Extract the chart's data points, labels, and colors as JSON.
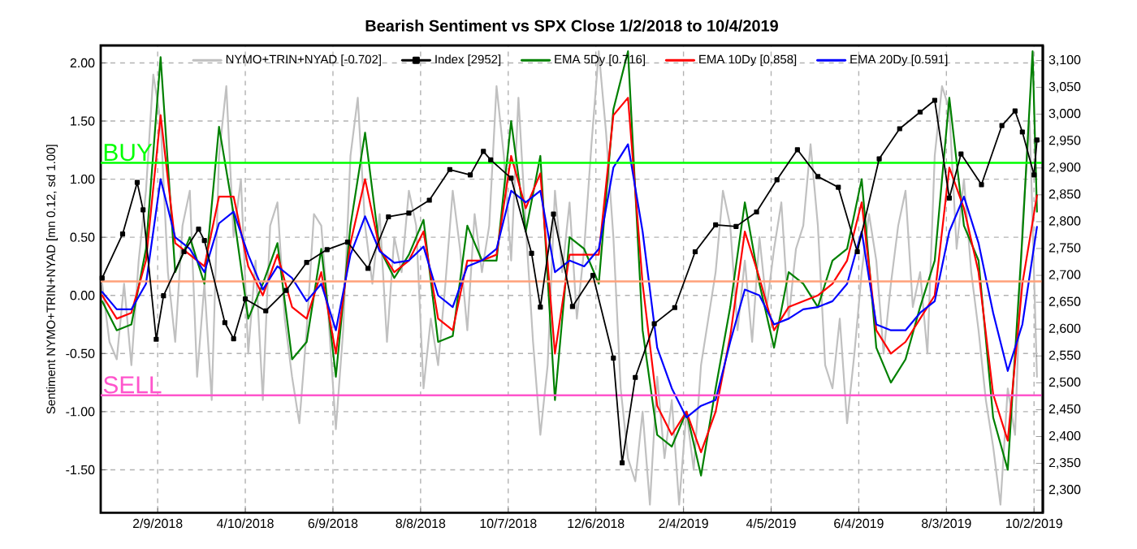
{
  "chart_data": {
    "type": "line",
    "title": "Bearish Sentiment vs SPX Close 1/2/2018 to 10/4/2019",
    "ylabel": "Sentiment NYMO+TRIN+NYAD [mn 0.12, sd 1.00]",
    "xlim": [
      "2018-01-01",
      "2019-10-08"
    ],
    "xticks": [
      {
        "value": "2018-02-09",
        "label": "2/9/2018"
      },
      {
        "value": "2018-04-10",
        "label": "4/10/2018"
      },
      {
        "value": "2018-06-09",
        "label": "6/9/2018"
      },
      {
        "value": "2018-08-08",
        "label": "8/8/2018"
      },
      {
        "value": "2018-10-07",
        "label": "10/7/2018"
      },
      {
        "value": "2018-12-06",
        "label": "12/6/2018"
      },
      {
        "value": "2019-02-04",
        "label": "2/4/2019"
      },
      {
        "value": "2019-04-05",
        "label": "4/5/2019"
      },
      {
        "value": "2019-06-04",
        "label": "6/4/2019"
      },
      {
        "value": "2019-08-03",
        "label": "8/3/2019"
      },
      {
        "value": "2019-10-02",
        "label": "10/2/2019"
      }
    ],
    "ylim": [
      -1.87,
      2.15
    ],
    "yticks": [
      {
        "value": -1.5,
        "label": "-1.50"
      },
      {
        "value": -1,
        "label": "-1.00"
      },
      {
        "value": -0.5,
        "label": "-0.50"
      },
      {
        "value": 0,
        "label": "0.00"
      },
      {
        "value": 0.5,
        "label": "0.50"
      },
      {
        "value": 1,
        "label": "1.00"
      },
      {
        "value": 1.5,
        "label": "1.50"
      },
      {
        "value": 2,
        "label": "2.00"
      }
    ],
    "y2lim": [
      2258,
      3128
    ],
    "y2ticks": [
      {
        "value": 2300,
        "label": "2,300"
      },
      {
        "value": 2350,
        "label": "2,350"
      },
      {
        "value": 2400,
        "label": "2,400"
      },
      {
        "value": 2450,
        "label": "2,450"
      },
      {
        "value": 2500,
        "label": "2,500"
      },
      {
        "value": 2550,
        "label": "2,550"
      },
      {
        "value": 2600,
        "label": "2,600"
      },
      {
        "value": 2650,
        "label": "2,650"
      },
      {
        "value": 2700,
        "label": "2,700"
      },
      {
        "value": 2750,
        "label": "2,750"
      },
      {
        "value": 2800,
        "label": "2,800"
      },
      {
        "value": 2850,
        "label": "2,850"
      },
      {
        "value": 2900,
        "label": "2,900"
      },
      {
        "value": 2950,
        "label": "2,950"
      },
      {
        "value": 3000,
        "label": "3,000"
      },
      {
        "value": 3050,
        "label": "3,050"
      },
      {
        "value": 3100,
        "label": "3,100"
      }
    ],
    "grid": true,
    "legend": "top",
    "ref_lines": [
      {
        "axis": "y",
        "value": 1.14,
        "label": "BUY",
        "color": "#00ff00"
      },
      {
        "axis": "y",
        "value": 0.12,
        "color": "#ffa07a"
      },
      {
        "axis": "y",
        "value": -0.86,
        "label": "SELL",
        "color": "#ff55cc"
      }
    ],
    "series": [
      {
        "name": "NYMO+TRIN+NYAD [-0.702]",
        "color": "#c0c0c0",
        "x": [
          "2018-01-02",
          "2018-01-07",
          "2018-01-12",
          "2018-01-17",
          "2018-01-22",
          "2018-01-27",
          "2018-02-01",
          "2018-02-06",
          "2018-02-11",
          "2018-02-16",
          "2018-02-21",
          "2018-02-26",
          "2018-03-03",
          "2018-03-08",
          "2018-03-13",
          "2018-03-18",
          "2018-03-23",
          "2018-03-28",
          "2018-04-02",
          "2018-04-07",
          "2018-04-12",
          "2018-04-17",
          "2018-04-22",
          "2018-04-27",
          "2018-05-02",
          "2018-05-07",
          "2018-05-12",
          "2018-05-17",
          "2018-05-22",
          "2018-05-27",
          "2018-06-01",
          "2018-06-06",
          "2018-06-11",
          "2018-06-16",
          "2018-06-21",
          "2018-06-26",
          "2018-07-01",
          "2018-07-06",
          "2018-07-11",
          "2018-07-16",
          "2018-07-21",
          "2018-07-26",
          "2018-07-31",
          "2018-08-05",
          "2018-08-10",
          "2018-08-15",
          "2018-08-20",
          "2018-08-25",
          "2018-08-30",
          "2018-09-04",
          "2018-09-09",
          "2018-09-14",
          "2018-09-19",
          "2018-09-24",
          "2018-09-29",
          "2018-10-04",
          "2018-10-09",
          "2018-10-14",
          "2018-10-19",
          "2018-10-24",
          "2018-10-29",
          "2018-11-03",
          "2018-11-08",
          "2018-11-13",
          "2018-11-18",
          "2018-11-23",
          "2018-11-28",
          "2018-12-03",
          "2018-12-08",
          "2018-12-13",
          "2018-12-18",
          "2018-12-23",
          "2018-12-28",
          "2019-01-02",
          "2019-01-07",
          "2019-01-12",
          "2019-01-17",
          "2019-01-22",
          "2019-01-27",
          "2019-02-01",
          "2019-02-06",
          "2019-02-11",
          "2019-02-16",
          "2019-02-21",
          "2019-02-26",
          "2019-03-03",
          "2019-03-08",
          "2019-03-13",
          "2019-03-18",
          "2019-03-23",
          "2019-03-28",
          "2019-04-02",
          "2019-04-07",
          "2019-04-12",
          "2019-04-17",
          "2019-04-22",
          "2019-04-27",
          "2019-05-02",
          "2019-05-07",
          "2019-05-12",
          "2019-05-17",
          "2019-05-22",
          "2019-05-27",
          "2019-06-01",
          "2019-06-06",
          "2019-06-11",
          "2019-06-16",
          "2019-06-21",
          "2019-06-26",
          "2019-07-01",
          "2019-07-06",
          "2019-07-11",
          "2019-07-16",
          "2019-07-21",
          "2019-07-26",
          "2019-07-31",
          "2019-08-05",
          "2019-08-10",
          "2019-08-15",
          "2019-08-20",
          "2019-08-25",
          "2019-08-30",
          "2019-09-04",
          "2019-09-09",
          "2019-09-14",
          "2019-09-19",
          "2019-09-24",
          "2019-09-29",
          "2019-10-04"
        ],
        "values": [
          0.1,
          -0.4,
          -0.55,
          0.1,
          -0.6,
          0.3,
          0.9,
          1.9,
          1.5,
          0.2,
          -0.4,
          0.6,
          0.9,
          -0.7,
          0.1,
          -0.9,
          1.2,
          1.8,
          0.5,
          1.0,
          -0.5,
          0.3,
          -0.9,
          0.6,
          0.8,
          -0.2,
          -0.7,
          -1.1,
          -0.3,
          0.7,
          0.6,
          -0.2,
          -1.15,
          -0.3,
          1.2,
          1.7,
          0.6,
          0.1,
          0.7,
          -0.4,
          0.5,
          0.2,
          0.9,
          0.6,
          -0.8,
          -0.2,
          -0.6,
          0.1,
          0.9,
          0.4,
          -0.3,
          0.7,
          0.2,
          0.6,
          1.8,
          1.2,
          0.3,
          1.7,
          0.6,
          -0.4,
          -1.2,
          -0.6,
          0.9,
          0.2,
          0.8,
          -0.2,
          0.4,
          1.3,
          2.1,
          1.4,
          0.5,
          -0.8,
          -1.4,
          -1.6,
          -1.0,
          -1.8,
          -0.7,
          -1.4,
          -0.9,
          -1.8,
          -1.0,
          -1.5,
          -0.6,
          -0.2,
          0.2,
          0.9,
          0.6,
          -0.3,
          0.3,
          -0.4,
          0.5,
          -0.1,
          0.4,
          0.8,
          -0.2,
          0.4,
          0.6,
          1.3,
          0.6,
          -0.6,
          -0.8,
          -0.2,
          -1.1,
          -0.5,
          0.2,
          0.7,
          0.3,
          -0.5,
          0.1,
          0.6,
          0.9,
          -0.1,
          0.2,
          -0.5,
          1.2,
          1.8,
          1.6,
          0.4,
          1.0,
          0.2,
          -0.3,
          -0.9,
          -1.3,
          -1.8,
          -0.8,
          -1.2,
          0.6,
          1.5,
          -0.7
        ]
      },
      {
        "name": "Index [2952]",
        "color": "#000000",
        "axis": "y2",
        "marker": "square",
        "x": [
          "2018-01-02",
          "2018-01-16",
          "2018-01-26",
          "2018-01-30",
          "2018-02-08",
          "2018-02-13",
          "2018-02-27",
          "2018-03-09",
          "2018-03-13",
          "2018-03-27",
          "2018-04-02",
          "2018-04-10",
          "2018-04-24",
          "2018-05-08",
          "2018-05-22",
          "2018-06-05",
          "2018-06-19",
          "2018-07-03",
          "2018-07-17",
          "2018-07-31",
          "2018-08-14",
          "2018-08-28",
          "2018-09-11",
          "2018-09-20",
          "2018-09-25",
          "2018-10-09",
          "2018-10-23",
          "2018-10-29",
          "2018-11-07",
          "2018-11-20",
          "2018-12-04",
          "2018-12-18",
          "2018-12-24",
          "2019-01-02",
          "2019-01-15",
          "2019-01-29",
          "2019-02-12",
          "2019-02-26",
          "2019-03-12",
          "2019-03-26",
          "2019-04-09",
          "2019-04-23",
          "2019-05-07",
          "2019-05-21",
          "2019-06-03",
          "2019-06-18",
          "2019-07-02",
          "2019-07-16",
          "2019-07-26",
          "2019-08-05",
          "2019-08-13",
          "2019-08-27",
          "2019-09-10",
          "2019-09-19",
          "2019-09-24",
          "2019-10-02",
          "2019-10-04"
        ],
        "values": [
          2695,
          2777,
          2873,
          2822,
          2581,
          2662,
          2744,
          2786,
          2765,
          2612,
          2582,
          2656,
          2634,
          2672,
          2724,
          2748,
          2762,
          2713,
          2809,
          2816,
          2840,
          2897,
          2887,
          2931,
          2915,
          2881,
          2741,
          2641,
          2814,
          2642,
          2700,
          2546,
          2351,
          2510,
          2610,
          2640,
          2744,
          2794,
          2791,
          2818,
          2878,
          2934,
          2884,
          2864,
          2744,
          2917,
          2973,
          3004,
          3026,
          2844,
          2926,
          2869,
          2979,
          3006,
          2967,
          2887,
          2952
        ]
      },
      {
        "name": "EMA 5Dy [0.716]",
        "color": "#008000",
        "x": [
          "2018-01-02",
          "2018-01-12",
          "2018-01-22",
          "2018-02-01",
          "2018-02-11",
          "2018-02-21",
          "2018-03-03",
          "2018-03-13",
          "2018-03-23",
          "2018-04-02",
          "2018-04-12",
          "2018-04-22",
          "2018-05-02",
          "2018-05-12",
          "2018-05-22",
          "2018-06-01",
          "2018-06-11",
          "2018-06-21",
          "2018-07-01",
          "2018-07-11",
          "2018-07-21",
          "2018-07-31",
          "2018-08-10",
          "2018-08-20",
          "2018-08-30",
          "2018-09-09",
          "2018-09-19",
          "2018-09-29",
          "2018-10-09",
          "2018-10-19",
          "2018-10-29",
          "2018-11-08",
          "2018-11-18",
          "2018-11-28",
          "2018-12-08",
          "2018-12-18",
          "2018-12-28",
          "2019-01-07",
          "2019-01-17",
          "2019-01-27",
          "2019-02-06",
          "2019-02-16",
          "2019-02-26",
          "2019-03-08",
          "2019-03-18",
          "2019-03-28",
          "2019-04-07",
          "2019-04-17",
          "2019-04-27",
          "2019-05-07",
          "2019-05-17",
          "2019-05-27",
          "2019-06-06",
          "2019-06-16",
          "2019-06-26",
          "2019-07-06",
          "2019-07-16",
          "2019-07-26",
          "2019-08-05",
          "2019-08-15",
          "2019-08-25",
          "2019-09-04",
          "2019-09-14",
          "2019-09-24",
          "2019-10-01",
          "2019-10-04"
        ],
        "values": [
          -0.05,
          -0.3,
          -0.25,
          0.4,
          2.05,
          0.2,
          0.5,
          0.1,
          1.45,
          0.7,
          -0.2,
          0.1,
          0.45,
          -0.55,
          -0.4,
          0.4,
          -0.7,
          0.6,
          1.4,
          0.4,
          0.15,
          0.35,
          0.65,
          -0.4,
          -0.35,
          0.6,
          0.3,
          0.3,
          1.5,
          0.55,
          1.2,
          -0.9,
          0.5,
          0.4,
          0.1,
          1.6,
          2.1,
          -0.3,
          -1.2,
          -1.3,
          -1.0,
          -1.55,
          -0.8,
          -0.1,
          0.8,
          0.1,
          -0.45,
          0.2,
          0.1,
          -0.1,
          0.3,
          0.4,
          1.0,
          -0.45,
          -0.75,
          -0.55,
          -0.1,
          0.3,
          1.7,
          0.6,
          0.3,
          -1.05,
          -1.5,
          0.5,
          2.1,
          0.72
        ]
      },
      {
        "name": "EMA 10Dy [0.858]",
        "color": "#ff0000",
        "x": [
          "2018-01-02",
          "2018-01-12",
          "2018-01-22",
          "2018-02-01",
          "2018-02-11",
          "2018-02-21",
          "2018-03-03",
          "2018-03-13",
          "2018-03-23",
          "2018-04-02",
          "2018-04-12",
          "2018-04-22",
          "2018-05-02",
          "2018-05-12",
          "2018-05-22",
          "2018-06-01",
          "2018-06-11",
          "2018-06-21",
          "2018-07-01",
          "2018-07-11",
          "2018-07-21",
          "2018-07-31",
          "2018-08-10",
          "2018-08-20",
          "2018-08-30",
          "2018-09-09",
          "2018-09-19",
          "2018-09-29",
          "2018-10-09",
          "2018-10-19",
          "2018-10-29",
          "2018-11-08",
          "2018-11-18",
          "2018-11-28",
          "2018-12-08",
          "2018-12-18",
          "2018-12-28",
          "2019-01-07",
          "2019-01-17",
          "2019-01-27",
          "2019-02-06",
          "2019-02-16",
          "2019-02-26",
          "2019-03-08",
          "2019-03-18",
          "2019-03-28",
          "2019-04-07",
          "2019-04-17",
          "2019-04-27",
          "2019-05-07",
          "2019-05-17",
          "2019-05-27",
          "2019-06-06",
          "2019-06-16",
          "2019-06-26",
          "2019-07-06",
          "2019-07-16",
          "2019-07-26",
          "2019-08-05",
          "2019-08-15",
          "2019-08-25",
          "2019-09-04",
          "2019-09-14",
          "2019-09-24",
          "2019-10-04"
        ],
        "values": [
          0.0,
          -0.2,
          -0.15,
          0.3,
          1.55,
          0.45,
          0.35,
          0.25,
          0.85,
          0.85,
          0.25,
          0.0,
          0.35,
          -0.1,
          -0.2,
          0.2,
          -0.5,
          0.45,
          1.0,
          0.4,
          0.2,
          0.3,
          0.55,
          -0.2,
          -0.3,
          0.3,
          0.3,
          0.35,
          1.2,
          0.75,
          1.05,
          -0.5,
          0.35,
          0.35,
          0.35,
          1.55,
          1.7,
          0.1,
          -0.95,
          -1.2,
          -1.0,
          -1.35,
          -1.0,
          -0.35,
          0.55,
          0.15,
          -0.3,
          -0.1,
          -0.05,
          0.0,
          0.1,
          0.3,
          0.8,
          -0.3,
          -0.5,
          -0.4,
          -0.2,
          0.0,
          1.1,
          0.75,
          0.2,
          -0.85,
          -1.25,
          0.1,
          0.86
        ]
      },
      {
        "name": "EMA 20Dy [0.591]",
        "color": "#0000ff",
        "x": [
          "2018-01-02",
          "2018-01-12",
          "2018-01-22",
          "2018-02-01",
          "2018-02-11",
          "2018-02-21",
          "2018-03-03",
          "2018-03-13",
          "2018-03-23",
          "2018-04-02",
          "2018-04-12",
          "2018-04-22",
          "2018-05-02",
          "2018-05-12",
          "2018-05-22",
          "2018-06-01",
          "2018-06-11",
          "2018-06-21",
          "2018-07-01",
          "2018-07-11",
          "2018-07-21",
          "2018-07-31",
          "2018-08-10",
          "2018-08-20",
          "2018-08-30",
          "2018-09-09",
          "2018-09-19",
          "2018-09-29",
          "2018-10-09",
          "2018-10-19",
          "2018-10-29",
          "2018-11-08",
          "2018-11-18",
          "2018-11-28",
          "2018-12-08",
          "2018-12-18",
          "2018-12-28",
          "2019-01-07",
          "2019-01-17",
          "2019-01-27",
          "2019-02-06",
          "2019-02-16",
          "2019-02-26",
          "2019-03-08",
          "2019-03-18",
          "2019-03-28",
          "2019-04-07",
          "2019-04-17",
          "2019-04-27",
          "2019-05-07",
          "2019-05-17",
          "2019-05-27",
          "2019-06-06",
          "2019-06-16",
          "2019-06-26",
          "2019-07-06",
          "2019-07-16",
          "2019-07-26",
          "2019-08-05",
          "2019-08-15",
          "2019-08-25",
          "2019-09-04",
          "2019-09-14",
          "2019-09-24",
          "2019-10-04"
        ],
        "values": [
          0.03,
          -0.12,
          -0.12,
          0.1,
          1.0,
          0.5,
          0.4,
          0.2,
          0.62,
          0.72,
          0.35,
          0.05,
          0.25,
          0.15,
          -0.05,
          0.1,
          -0.3,
          0.35,
          0.68,
          0.38,
          0.28,
          0.3,
          0.42,
          0.0,
          -0.1,
          0.25,
          0.3,
          0.4,
          0.9,
          0.8,
          0.9,
          0.2,
          0.3,
          0.25,
          0.4,
          1.1,
          1.3,
          0.55,
          -0.45,
          -0.8,
          -1.05,
          -0.95,
          -0.9,
          -0.4,
          0.05,
          0.0,
          -0.25,
          -0.2,
          -0.12,
          -0.1,
          -0.05,
          0.1,
          0.55,
          -0.25,
          -0.3,
          -0.3,
          -0.15,
          -0.05,
          0.55,
          0.85,
          0.45,
          -0.15,
          -0.65,
          -0.25,
          0.59
        ]
      }
    ]
  }
}
